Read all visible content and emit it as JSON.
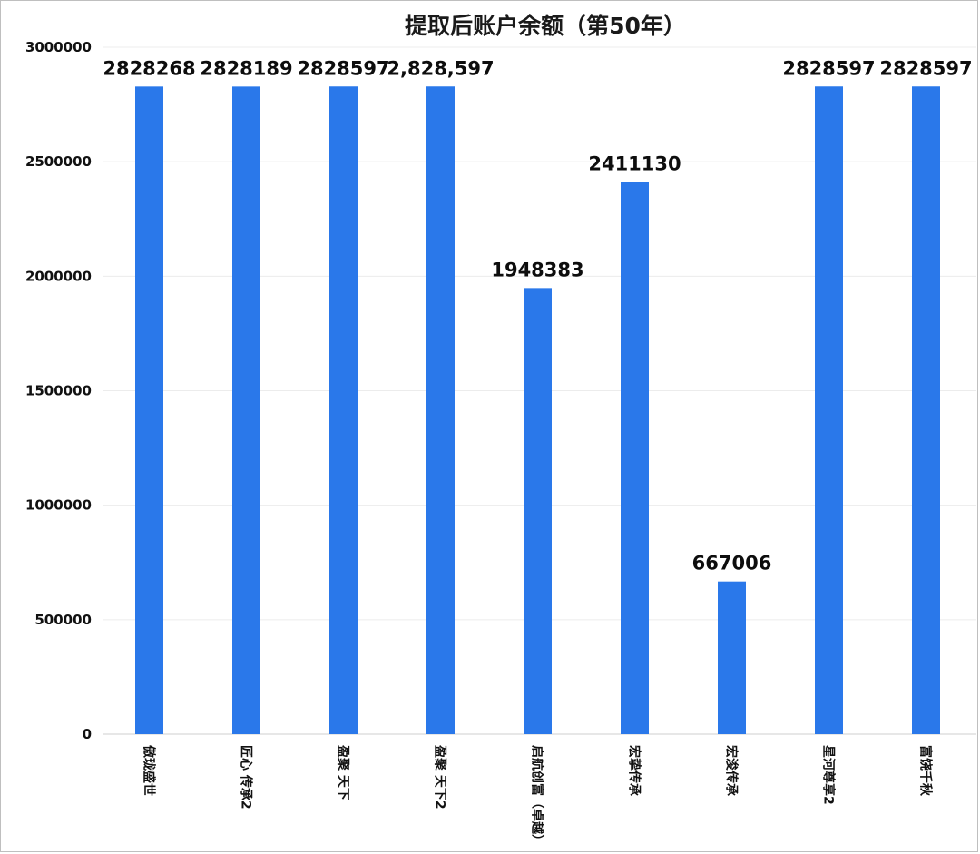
{
  "chart_data": {
    "type": "bar",
    "title": "提取后账户余额（第50年）",
    "xlabel": "",
    "ylabel": "",
    "ylim": [
      0,
      3000000
    ],
    "yticks": [
      0,
      500000,
      1000000,
      1500000,
      2000000,
      2500000,
      3000000
    ],
    "grid": true,
    "legend": "none",
    "bar_color": "#2a78ea",
    "categories": [
      "傲珑盛世",
      "匠心 传承2",
      "盈聚 天下",
      "盈聚 天下2",
      "启航创富（卓越）",
      "宏挚传承",
      "宏浚传承",
      "星河尊享2",
      "富饶千秋"
    ],
    "values": [
      2828268,
      2828189,
      2828597,
      2828597,
      1948383,
      2411130,
      667006,
      2828597,
      2828597
    ],
    "value_labels": [
      "2828268",
      "2828189",
      "2828597",
      "2,828,597",
      "1948383",
      "2411130",
      "667006",
      "2828597",
      "2828597"
    ]
  }
}
